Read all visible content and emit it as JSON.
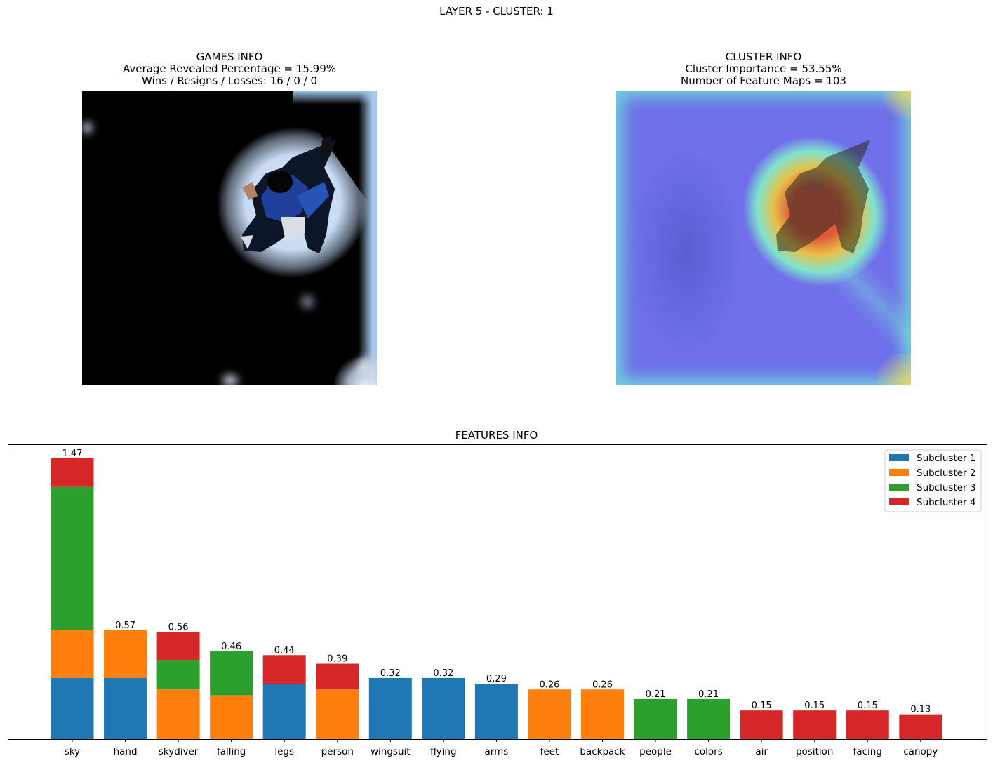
{
  "suptitle": "LAYER 5 - CLUSTER: 1",
  "games_info": {
    "title": "GAMES INFO",
    "line1": "Average Revealed Percentage = 15.99%",
    "line2": "Wins / Resigns / Losses: 16 / 0 / 0"
  },
  "cluster_info": {
    "title": "CLUSTER INFO",
    "line1": "Cluster Importance = 53.55%",
    "line2": "Number of Feature Maps = 103"
  },
  "chart_data": {
    "type": "bar",
    "stacked": true,
    "title": "FEATURES INFO",
    "xlabel": "",
    "ylabel": "",
    "categories": [
      "sky",
      "hand",
      "skydiver",
      "falling",
      "legs",
      "person",
      "wingsuit",
      "flying",
      "arms",
      "feet",
      "backpack",
      "people",
      "colors",
      "air",
      "position",
      "facing",
      "canopy"
    ],
    "totals": [
      "1.47",
      "0.57",
      "0.56",
      "0.46",
      "0.44",
      "0.39",
      "0.32",
      "0.32",
      "0.29",
      "0.26",
      "0.26",
      "0.21",
      "0.21",
      "0.15",
      "0.15",
      "0.15",
      "0.13"
    ],
    "series": [
      {
        "name": "Subcluster 1",
        "color": "#1f77b4",
        "values": [
          0.32,
          0.32,
          0,
          0,
          0.29,
          0,
          0.32,
          0.32,
          0.29,
          0,
          0,
          0,
          0,
          0,
          0,
          0,
          0
        ]
      },
      {
        "name": "Subcluster 2",
        "color": "#ff7f0e",
        "values": [
          0.25,
          0.25,
          0.26,
          0.23,
          0,
          0.26,
          0,
          0,
          0,
          0.26,
          0.26,
          0,
          0,
          0,
          0,
          0,
          0
        ]
      },
      {
        "name": "Subcluster 3",
        "color": "#2ca02c",
        "values": [
          0.75,
          0,
          0.155,
          0.23,
          0,
          0,
          0,
          0,
          0,
          0,
          0,
          0.21,
          0.21,
          0,
          0,
          0,
          0
        ]
      },
      {
        "name": "Subcluster 4",
        "color": "#d62728",
        "values": [
          0.15,
          0,
          0.145,
          0,
          0.15,
          0.135,
          0,
          0,
          0,
          0,
          0,
          0,
          0,
          0.15,
          0.15,
          0.15,
          0.13
        ]
      }
    ],
    "ylim": [
      0,
      1.5435
    ],
    "legend_position": "top-right",
    "grid": false,
    "y_ticks_visible": false
  }
}
